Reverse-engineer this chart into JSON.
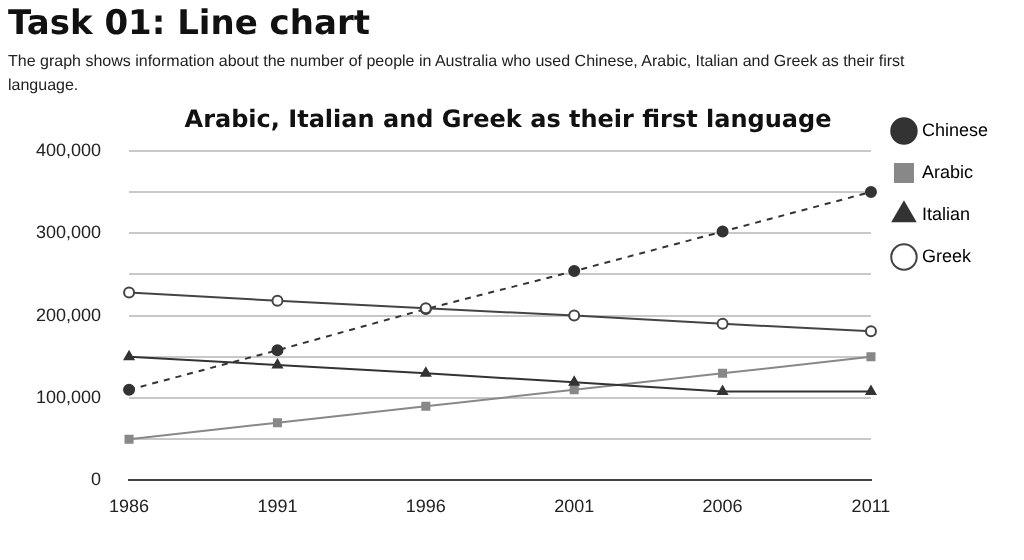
{
  "chart_data": {
    "type": "line",
    "title": "Arabic, Italian and Greek as their first language",
    "annotations": [
      "Task 01: Line chart",
      "The graph shows information about the number of people in Australia who used Chinese, Arabic, Italian and Greek as their first language."
    ],
    "categories": [
      "1986",
      "1991",
      "1996",
      "2001",
      "2006",
      "2011"
    ],
    "series": [
      {
        "name": "Chinese",
        "color": "#333333",
        "marker": "circle",
        "line_style": "dashed",
        "values": [
          110000,
          158000,
          208000,
          254000,
          302000,
          350000
        ]
      },
      {
        "name": "Arabic",
        "color": "#888888",
        "marker": "square",
        "line_style": "solid",
        "values": [
          50000,
          70000,
          90000,
          110000,
          130000,
          150000
        ]
      },
      {
        "name": "Italian",
        "color": "#333333",
        "marker": "triangle",
        "line_style": "solid",
        "values": [
          150000,
          140000,
          130000,
          119000,
          108000,
          108000
        ]
      },
      {
        "name": "Greek",
        "color": "#444444",
        "marker": "open circle",
        "line_style": "solid",
        "values": [
          228000,
          218000,
          209000,
          200000,
          190000,
          181000
        ]
      }
    ],
    "ylim": [
      0,
      400000
    ],
    "yticks": [
      {
        "value": 0,
        "label": "0"
      },
      {
        "value": 50000,
        "label": null
      },
      {
        "value": 100000,
        "label": "100,000"
      },
      {
        "value": 150000,
        "label": null
      },
      {
        "value": 200000,
        "label": "200,000"
      },
      {
        "value": 250000,
        "label": null
      },
      {
        "value": 300000,
        "label": "300,000"
      },
      {
        "value": 350000,
        "label": null
      },
      {
        "value": 400000,
        "label": "400,000"
      }
    ],
    "grid": "y",
    "legend": "right"
  }
}
